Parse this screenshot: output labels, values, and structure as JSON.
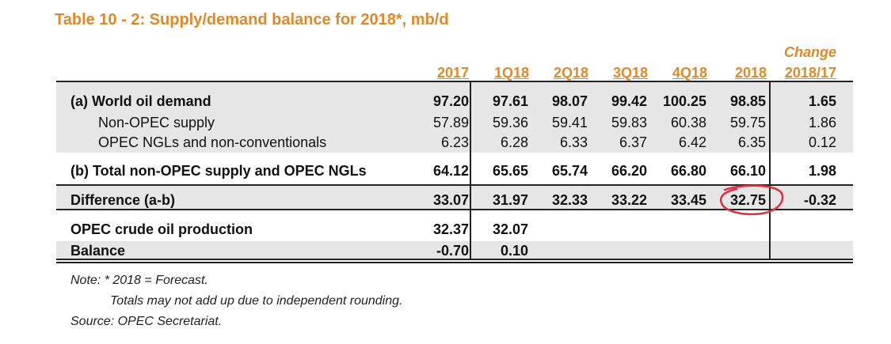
{
  "title": "Table 10 - 2: Supply/demand balance for 2018*, mb/d",
  "columns": [
    "2017",
    "1Q18",
    "2Q18",
    "3Q18",
    "4Q18",
    "2018"
  ],
  "change_header": [
    "Change",
    "2018/17"
  ],
  "rows": [
    {
      "label": "(a) World oil demand",
      "values": [
        "97.20",
        "97.61",
        "98.07",
        "99.42",
        "100.25",
        "98.85"
      ],
      "change": "1.65"
    },
    {
      "label": "Non-OPEC supply",
      "values": [
        "57.89",
        "59.36",
        "59.41",
        "59.83",
        "60.38",
        "59.75"
      ],
      "change": "1.86"
    },
    {
      "label": "OPEC NGLs and non-conventionals",
      "values": [
        "6.23",
        "6.28",
        "6.33",
        "6.37",
        "6.42",
        "6.35"
      ],
      "change": "0.12"
    },
    {
      "label": "(b) Total non-OPEC supply and OPEC NGLs",
      "values": [
        "64.12",
        "65.65",
        "65.74",
        "66.20",
        "66.80",
        "66.10"
      ],
      "change": "1.98"
    },
    {
      "label": "Difference (a-b)",
      "values": [
        "33.07",
        "31.97",
        "32.33",
        "33.22",
        "33.45",
        "32.75"
      ],
      "change": "-0.32"
    },
    {
      "label": "OPEC crude oil production",
      "values": [
        "32.37",
        "32.07"
      ]
    },
    {
      "label": "Balance",
      "values": [
        "-0.70",
        "0.10"
      ]
    }
  ],
  "notes": [
    "Note: * 2018 = Forecast.",
    "Totals may not add up due to independent rounding.",
    "Source: OPEC Secretariat."
  ],
  "colors": {
    "accent": "#e0892a",
    "band": "#e6e6e6",
    "annotation": "#e03040"
  }
}
